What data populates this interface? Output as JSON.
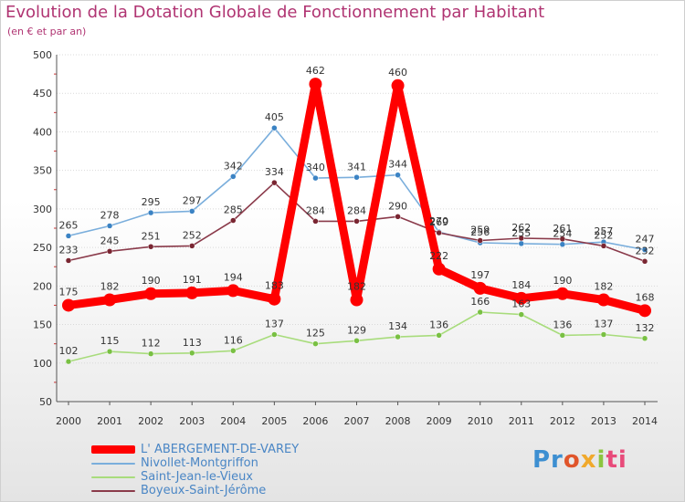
{
  "title": "Evolution de la Dotation Globale de Fonctionnement par Habitant",
  "subtitle": "(en € et par an)",
  "logo": {
    "p1": "Pr",
    "p2": "o",
    "p3": "x",
    "p4": "i",
    "p5": "ti"
  },
  "chart_data": {
    "type": "line",
    "title": "Evolution de la Dotation Globale de Fonctionnement par Habitant",
    "subtitle": "(en € et par an)",
    "xlabel": "",
    "ylabel": "",
    "x": [
      "2000",
      "2001",
      "2002",
      "2003",
      "2004",
      "2005",
      "2006",
      "2007",
      "2008",
      "2009",
      "2010",
      "2011",
      "2012",
      "2013",
      "2014"
    ],
    "ylim": [
      50,
      500
    ],
    "yticks": [
      50,
      100,
      150,
      200,
      250,
      300,
      350,
      400,
      450,
      500
    ],
    "legend_position": "bottom-left",
    "series": [
      {
        "name": "L' ABERGEMENT-DE-VAREY",
        "color": "#ff0000",
        "marker_color": "#ff0000",
        "emphasis": "thick",
        "values": [
          175,
          182,
          190,
          191,
          194,
          183,
          462,
          182,
          460,
          222,
          197,
          184,
          190,
          182,
          168
        ],
        "labels": [
          "175",
          "182",
          "190",
          "191",
          "194",
          "183",
          "462",
          "182",
          "460",
          "222",
          "197",
          "184",
          "190",
          "182",
          "168"
        ]
      },
      {
        "name": "Nivollet-Montgriffon",
        "color": "#7aaedc",
        "marker_color": "#3b83c4",
        "emphasis": "thin",
        "values": [
          265,
          278,
          295,
          297,
          342,
          405,
          340,
          341,
          344,
          270,
          256,
          255,
          254,
          257,
          247
        ],
        "labels": [
          "265",
          "278",
          "295",
          "297",
          "342",
          "405",
          "340",
          "341",
          "344",
          "270",
          "256",
          "255",
          "254",
          "257",
          "247"
        ]
      },
      {
        "name": "Saint-Jean-le-Vieux",
        "color": "#a8dc7c",
        "marker_color": "#79c043",
        "emphasis": "thin",
        "values": [
          102,
          115,
          112,
          113,
          116,
          137,
          125,
          129,
          134,
          136,
          166,
          163,
          136,
          137,
          132
        ],
        "labels": [
          "102",
          "115",
          "112",
          "113",
          "116",
          "137",
          "125",
          "129",
          "134",
          "136",
          "166",
          "163",
          "136",
          "137",
          "132"
        ]
      },
      {
        "name": "Boyeux-Saint-Jérôme",
        "color": "#8a3a4a",
        "marker_color": "#7a2632",
        "emphasis": "thin",
        "values": [
          233,
          245,
          251,
          252,
          285,
          334,
          284,
          284,
          290,
          269,
          259,
          262,
          261,
          252,
          232
        ],
        "labels": [
          "233",
          "245",
          "251",
          "252",
          "285",
          "334",
          "284",
          "284",
          "290",
          "269",
          "259",
          "262",
          "261",
          "252",
          "232"
        ]
      }
    ]
  }
}
